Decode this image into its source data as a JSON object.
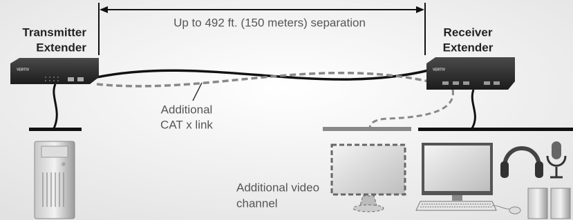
{
  "labels": {
    "transmitter": [
      "Transmitter",
      "Extender"
    ],
    "distance": "Up to 492 ft. (150 meters) separation",
    "receiver": [
      "Receiver",
      "Extender"
    ],
    "cat_link": [
      "Additional",
      "CAT x link"
    ],
    "video": [
      "Additional video",
      "channel"
    ]
  },
  "device_brand": "VERTIV"
}
